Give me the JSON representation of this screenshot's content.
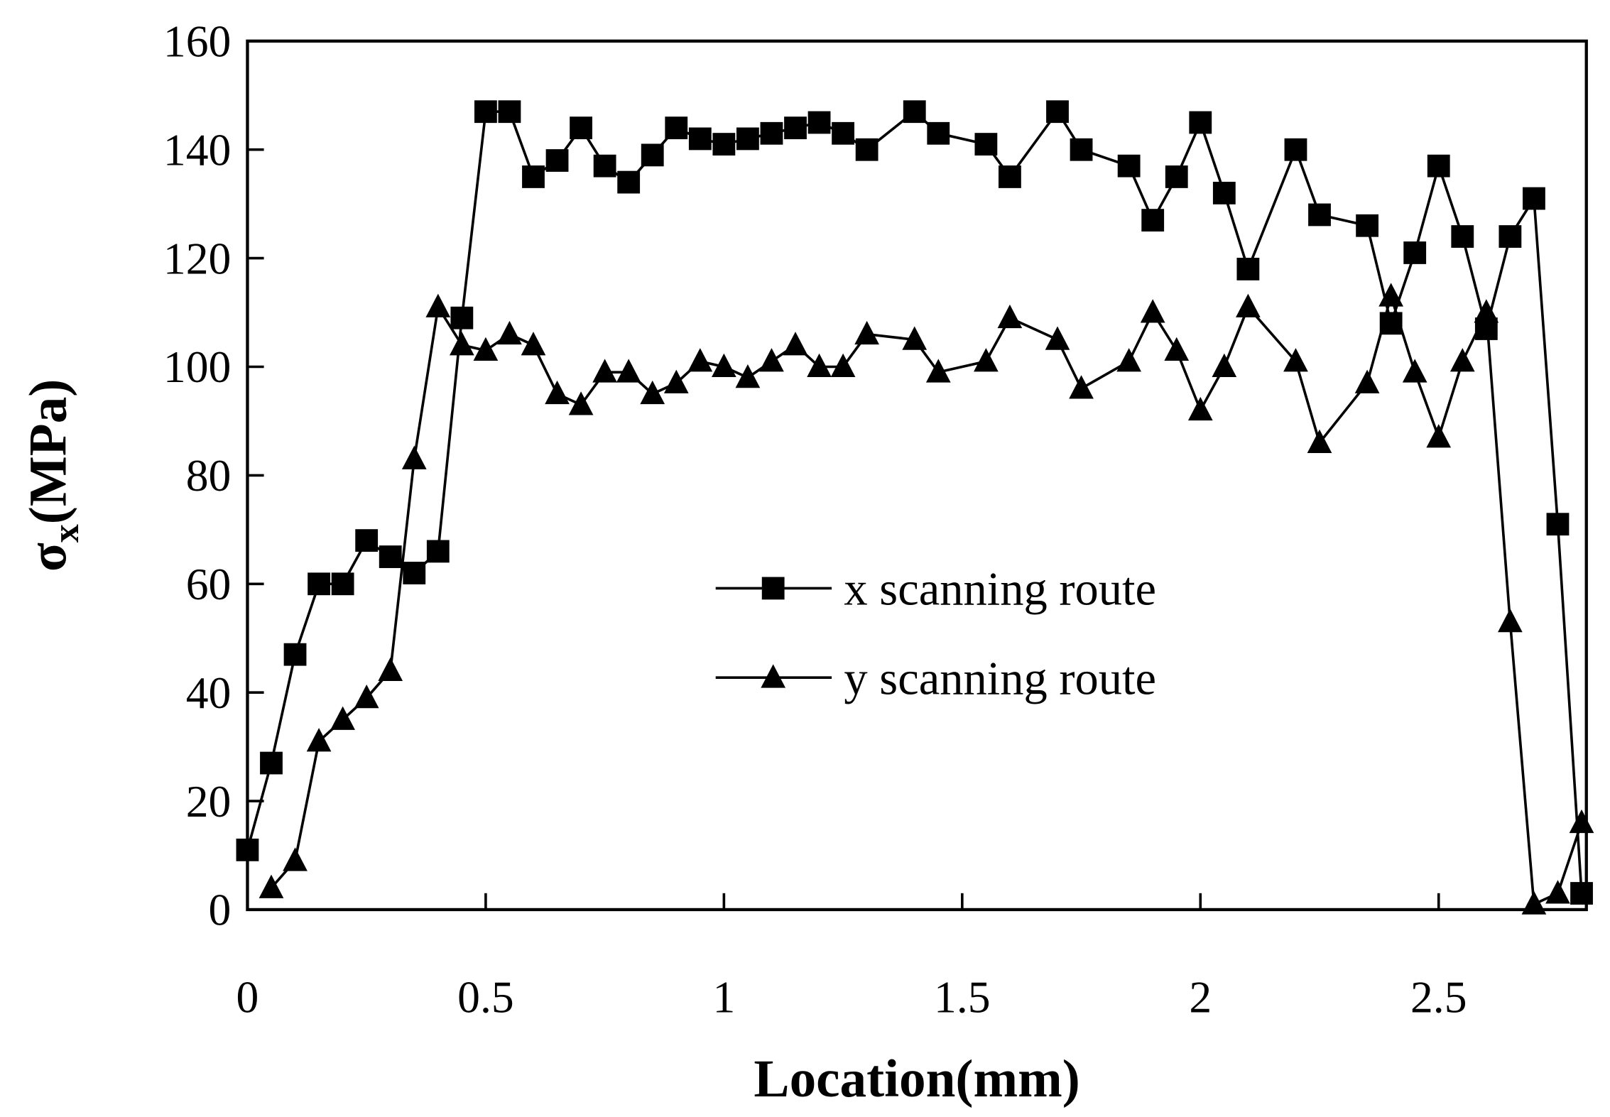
{
  "chart_data": {
    "type": "line",
    "x_label": "Location(mm)",
    "y_label": {
      "symbol": "σ",
      "subscript": "x",
      "unit": "(MPa)"
    },
    "xlim": [
      0,
      2.81
    ],
    "ylim": [
      0,
      160
    ],
    "xticks": [
      0,
      0.5,
      1,
      1.5,
      2,
      2.5
    ],
    "yticks": [
      0,
      20,
      40,
      60,
      80,
      100,
      120,
      140,
      160
    ],
    "series": [
      {
        "name": "x scanning route",
        "color": "#000000",
        "marker": "square",
        "x": [
          0,
          0.05,
          0.1,
          0.15,
          0.2,
          0.25,
          0.3,
          0.35,
          0.4,
          0.45,
          0.5,
          0.55,
          0.6,
          0.65,
          0.7,
          0.75,
          0.8,
          0.85,
          0.9,
          0.95,
          1.0,
          1.05,
          1.1,
          1.15,
          1.2,
          1.25,
          1.3,
          1.4,
          1.45,
          1.55,
          1.6,
          1.7,
          1.75,
          1.85,
          1.9,
          1.95,
          2.0,
          2.05,
          2.1,
          2.2,
          2.25,
          2.35,
          2.4,
          2.45,
          2.5,
          2.55,
          2.6,
          2.65,
          2.7,
          2.75,
          2.8
        ],
        "values": [
          11,
          27,
          47,
          60,
          60,
          68,
          65,
          62,
          66,
          109,
          147,
          147,
          135,
          138,
          144,
          137,
          134,
          139,
          144,
          142,
          141,
          142,
          143,
          144,
          145,
          143,
          140,
          147,
          143,
          141,
          135,
          147,
          140,
          137,
          127,
          135,
          145,
          132,
          118,
          140,
          128,
          126,
          108,
          121,
          137,
          124,
          107,
          124,
          131,
          71,
          3
        ]
      },
      {
        "name": "y scanning route",
        "color": "#000000",
        "marker": "triangle",
        "x": [
          0.05,
          0.1,
          0.15,
          0.2,
          0.25,
          0.3,
          0.35,
          0.4,
          0.45,
          0.5,
          0.55,
          0.6,
          0.65,
          0.7,
          0.75,
          0.8,
          0.85,
          0.9,
          0.95,
          1.0,
          1.05,
          1.1,
          1.15,
          1.2,
          1.25,
          1.3,
          1.4,
          1.45,
          1.55,
          1.6,
          1.7,
          1.75,
          1.85,
          1.9,
          1.95,
          2.0,
          2.05,
          2.1,
          2.2,
          2.25,
          2.35,
          2.4,
          2.45,
          2.5,
          2.55,
          2.6,
          2.65,
          2.7,
          2.75,
          2.8
        ],
        "values": [
          4,
          9,
          31,
          35,
          39,
          44,
          83,
          111,
          104,
          103,
          106,
          104,
          95,
          93,
          99,
          99,
          95,
          97,
          101,
          100,
          98,
          101,
          104,
          100,
          100,
          106,
          105,
          99,
          101,
          109,
          105,
          96,
          101,
          110,
          103,
          92,
          100,
          111,
          101,
          86,
          97,
          113,
          99,
          87,
          101,
          110,
          53,
          1,
          3,
          16
        ]
      }
    ]
  }
}
